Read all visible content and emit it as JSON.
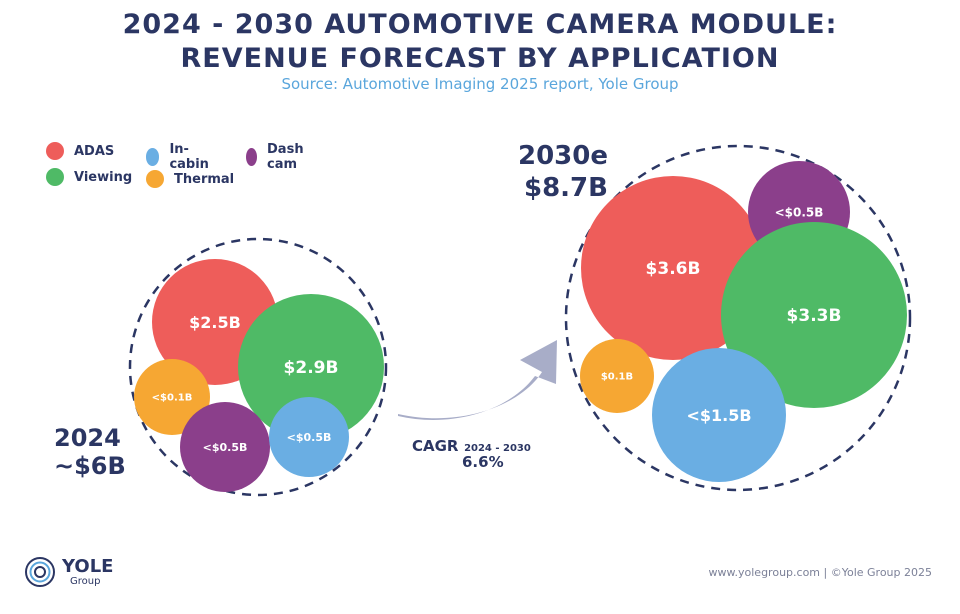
{
  "title_line1": "2024 - 2030 AUTOMOTIVE CAMERA MODULE:",
  "title_line2": "REVENUE FORECAST BY APPLICATION",
  "subtitle": "Source: Automotive Imaging 2025 report, Yole Group",
  "legend": [
    {
      "label": "ADAS",
      "color": "#ee5d5a"
    },
    {
      "label": "In-cabin",
      "color": "#6aaee3"
    },
    {
      "label": "Dash cam",
      "color": "#8b3f8b"
    },
    {
      "label": "Viewing",
      "color": "#4fba66"
    },
    {
      "label": "Thermal",
      "color": "#f6a733"
    }
  ],
  "chart_data": {
    "type": "bubble",
    "groups": [
      {
        "year": "2024",
        "total": "~$6B",
        "values": [
          {
            "category": "ADAS",
            "label": "$2.5B",
            "value": 2.5
          },
          {
            "category": "Viewing",
            "label": "$2.9B",
            "value": 2.9
          },
          {
            "category": "Thermal",
            "label": "<$0.1B",
            "value": 0.1
          },
          {
            "category": "Dash cam",
            "label": "<$0.5B",
            "value": 0.5
          },
          {
            "category": "In-cabin",
            "label": "<$0.5B",
            "value": 0.5
          }
        ]
      },
      {
        "year": "2030e",
        "total": "$8.7B",
        "values": [
          {
            "category": "ADAS",
            "label": "$3.6B",
            "value": 3.6
          },
          {
            "category": "Dash cam",
            "label": "<$0.5B",
            "value": 0.5
          },
          {
            "category": "Viewing",
            "label": "$3.3B",
            "value": 3.3
          },
          {
            "category": "Thermal",
            "label": "$0.1B",
            "value": 0.1
          },
          {
            "category": "In-cabin",
            "label": "<$1.5B",
            "value": 1.5
          }
        ]
      }
    ],
    "cagr": {
      "label": "CAGR",
      "period": "2024 - 2030",
      "value": "6.6%"
    }
  },
  "logo": {
    "name": "YOLE",
    "sub": "Group"
  },
  "footer": "www.yolegroup.com | ©Yole Group 2025"
}
